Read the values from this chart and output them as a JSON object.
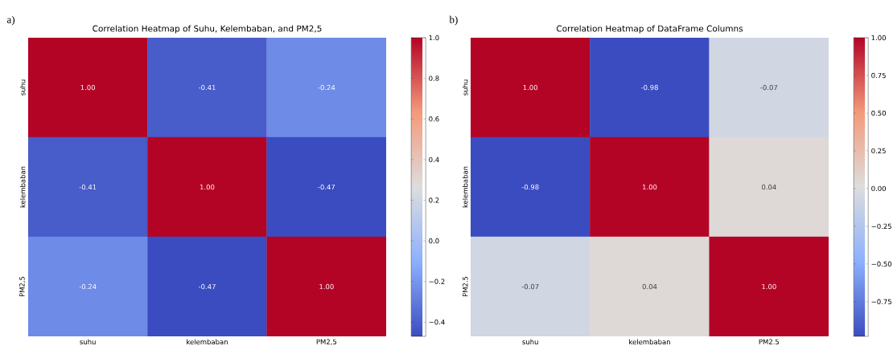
{
  "chart_data": [
    {
      "type": "heatmap",
      "title": "Correlation Heatmap of Suhu, Kelembaban, and PM2,5",
      "annotations": [
        "a)"
      ],
      "categories": [
        "suhu",
        "kelembaban",
        "PM2,5"
      ],
      "y_categories": [
        "suhu",
        "kelembaban",
        "PM2,5"
      ],
      "cells": [
        [
          1.0,
          -0.41,
          -0.24
        ],
        [
          -0.41,
          1.0,
          -0.47
        ],
        [
          -0.24,
          -0.47,
          1.0
        ]
      ],
      "cell_labels": [
        [
          "1.00",
          "-0.41",
          "-0.24"
        ],
        [
          "-0.41",
          "1.00",
          "-0.47"
        ],
        [
          "-0.24",
          "-0.47",
          "1.00"
        ]
      ],
      "clim": [
        -0.47,
        1.0
      ],
      "cticks": [
        {
          "value": -0.4,
          "label": "−0.4"
        },
        {
          "value": -0.2,
          "label": "−0.2"
        },
        {
          "value": 0.0,
          "label": "0.0"
        },
        {
          "value": 0.2,
          "label": "0.2"
        },
        {
          "value": 0.4,
          "label": "0.4"
        },
        {
          "value": 0.6,
          "label": "0.6"
        },
        {
          "value": 0.8,
          "label": "0.8"
        },
        {
          "value": 1.0,
          "label": "1.0"
        }
      ]
    },
    {
      "type": "heatmap",
      "title": "Correlation Heatmap of DataFrame Columns",
      "annotations": [
        "b)"
      ],
      "categories": [
        "suhu",
        "kelembaban",
        "PM2.5"
      ],
      "y_categories": [
        "suhu",
        "kelembaban",
        "PM2.5"
      ],
      "cells": [
        [
          1.0,
          -0.98,
          -0.07
        ],
        [
          -0.98,
          1.0,
          0.04
        ],
        [
          -0.07,
          0.04,
          1.0
        ]
      ],
      "cell_labels": [
        [
          "1.00",
          "-0.98",
          "-0.07"
        ],
        [
          "-0.98",
          "1.00",
          "0.04"
        ],
        [
          "-0.07",
          "0.04",
          "1.00"
        ]
      ],
      "clim": [
        -0.98,
        1.0
      ],
      "cticks": [
        {
          "value": -0.75,
          "label": "−0.75"
        },
        {
          "value": -0.5,
          "label": "−0.50"
        },
        {
          "value": -0.25,
          "label": "−0.25"
        },
        {
          "value": 0.0,
          "label": "0.00"
        },
        {
          "value": 0.25,
          "label": "0.25"
        },
        {
          "value": 0.5,
          "label": "0.50"
        },
        {
          "value": 0.75,
          "label": "0.75"
        },
        {
          "value": 1.0,
          "label": "1.00"
        }
      ]
    }
  ]
}
